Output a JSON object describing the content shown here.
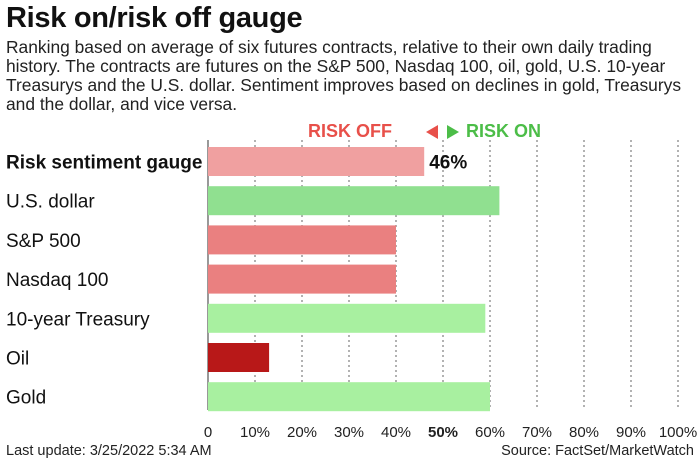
{
  "header": {
    "title": "Risk on/risk off gauge",
    "subtitle": "Ranking based on average of six futures contracts, relative to their own daily trading history. The contracts are futures on the S&P 500, Nasdaq 100, oil, gold, U.S. 10-year Treasurys and the U.S. dollar. Sentiment improves based on declines in gold, Treasurys and the dollar, and vice versa."
  },
  "legend": {
    "risk_off": "RISK OFF",
    "risk_on": "RISK ON",
    "risk_off_color": "#e8504a",
    "risk_on_color": "#4cbd48"
  },
  "chart_data": {
    "type": "bar",
    "orientation": "horizontal",
    "categories": [
      "Risk sentiment gauge",
      "U.S. dollar",
      "S&P 500",
      "Nasdaq 100",
      "10-year Treasury",
      "Oil",
      "Gold"
    ],
    "values": [
      46,
      62,
      40,
      40,
      59,
      13,
      60
    ],
    "colors": [
      "#f0a0a0",
      "#90e090",
      "#ea8080",
      "#ea8080",
      "#a8f0a0",
      "#b81818",
      "#a8f0a0"
    ],
    "bold_category_index": 0,
    "value_label": "46%",
    "x_ticks": [
      "0",
      "10%",
      "20%",
      "30%",
      "40%",
      "50%",
      "60%",
      "70%",
      "80%",
      "90%",
      "100%"
    ],
    "bold_tick_index": 5,
    "xlim": [
      0,
      100
    ],
    "grid": "vertical-dashed",
    "legend_placement": "top-center"
  },
  "footer": {
    "last_update": "Last update: 3/25/2022 5:34 AM",
    "source": "Source: FactSet/MarketWatch"
  }
}
